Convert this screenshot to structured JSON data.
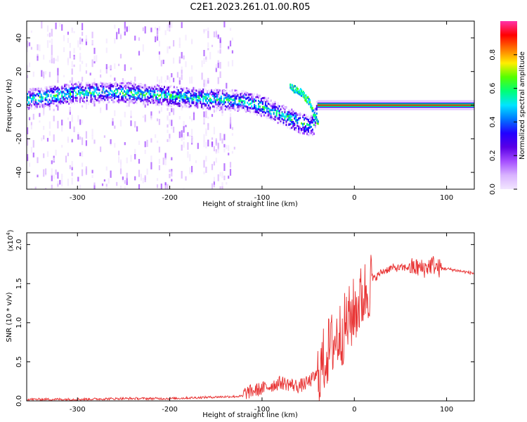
{
  "title": "C2E1.2023.261.01.00.R05",
  "colors": {
    "snr_line": "#e83232",
    "spectrogram_background": "#ffffff",
    "colormap": [
      "#f2e6ff",
      "#d9b3ff",
      "#a44dff",
      "#5a00e6",
      "#2200ff",
      "#0077ff",
      "#00e5ff",
      "#00ff77",
      "#55ff00",
      "#ffee00",
      "#ff7700",
      "#ff0000",
      "#ff33aa"
    ]
  },
  "chart_data": [
    {
      "type": "heatmap",
      "title": "C2E1.2023.261.01.00.R05",
      "xlabel": "Height of straight line (km)",
      "ylabel": "Frequency (Hz)",
      "xlim": [
        -355,
        130
      ],
      "ylim": [
        -50,
        50
      ],
      "x_ticks": [
        -300,
        -200,
        -100,
        0,
        100
      ],
      "x_tick_labels": [
        "-300",
        "-200",
        "-100",
        "0",
        "100"
      ],
      "y_ticks": [
        -40,
        -20,
        0,
        20,
        40
      ],
      "y_tick_labels": [
        "-40",
        "-20",
        "0",
        "20",
        "40"
      ],
      "colorbar": {
        "label": "Normalized spectral amplitude",
        "range": [
          0,
          1
        ],
        "ticks": [
          0.0,
          0.2,
          0.4,
          0.6,
          0.8
        ],
        "tick_labels": [
          "0.0",
          "0.2",
          "0.4",
          "0.6",
          "0.8"
        ]
      },
      "ridge": {
        "x": [
          -355,
          -300,
          -250,
          -200,
          -150,
          -120,
          -100,
          -80,
          -60,
          -45,
          -40,
          0,
          50,
          80,
          130
        ],
        "frequency": [
          4,
          8,
          8,
          6,
          4,
          3,
          0,
          -5,
          -10,
          -12,
          0,
          0,
          0,
          0,
          0
        ]
      },
      "branch": {
        "x": [
          -70,
          -60,
          -50,
          -45,
          -40
        ],
        "frequency": [
          11,
          9,
          3,
          -4,
          -10
        ]
      }
    },
    {
      "type": "line",
      "xlabel": "Height of straight line (km)",
      "ylabel": "SNR (10 * v/v)",
      "y_scale_label": "(x10",
      "y_scale_exponent": "4",
      "y_scale_close": ")",
      "xlim": [
        -355,
        130
      ],
      "ylim": [
        0,
        2.15
      ],
      "x_ticks": [
        -300,
        -200,
        -100,
        0,
        100
      ],
      "x_tick_labels": [
        "-300",
        "-200",
        "-100",
        "0",
        "100"
      ],
      "y_ticks": [
        0.0,
        0.5,
        1.0,
        1.5,
        2.0
      ],
      "y_tick_labels": [
        "0.0",
        "0.5",
        "1.0",
        "1.5",
        "2.0"
      ],
      "series": [
        {
          "x": [
            -355,
            -300,
            -250,
            -200,
            -150,
            -120,
            -100,
            -80,
            -60,
            -50,
            -40,
            -35,
            -30,
            -25,
            -20,
            -15,
            -10,
            -5,
            0,
            5,
            10,
            15,
            20,
            30,
            40,
            50,
            60,
            70,
            75,
            80,
            85,
            90,
            100,
            110,
            120,
            130
          ],
          "y": [
            0.02,
            0.02,
            0.03,
            0.03,
            0.05,
            0.06,
            0.12,
            0.2,
            0.15,
            0.2,
            0.3,
            0.45,
            0.6,
            0.7,
            0.8,
            0.85,
            0.95,
            1.05,
            1.15,
            1.25,
            1.35,
            1.45,
            1.55,
            1.65,
            1.7,
            1.7,
            1.71,
            1.7,
            1.69,
            1.72,
            1.75,
            1.7,
            1.69,
            1.67,
            1.65,
            1.63
          ]
        }
      ]
    }
  ]
}
